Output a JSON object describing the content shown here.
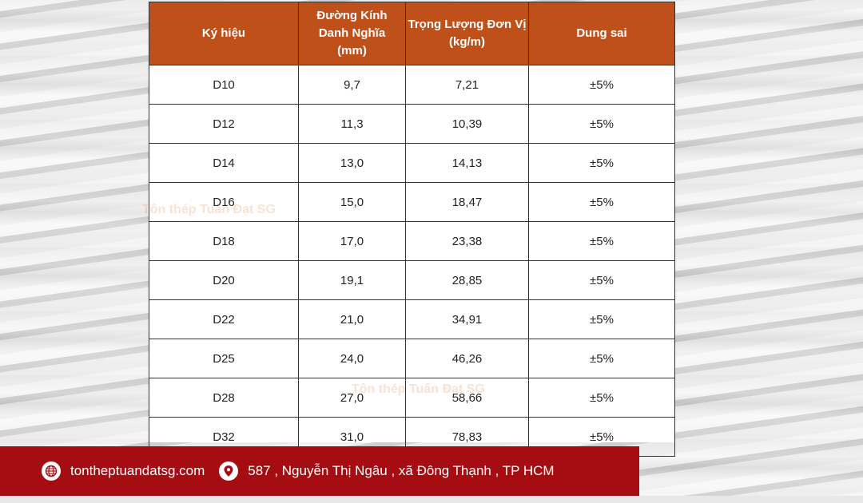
{
  "table": {
    "headers": [
      [
        "Ký hiệu"
      ],
      [
        "Đường Kính",
        "Danh Nghĩa",
        "(mm)"
      ],
      [
        "Trọng Lượng Đơn Vị",
        "(kg/m)"
      ],
      [
        "Dung sai"
      ]
    ],
    "rows": [
      [
        "D10",
        "9,7",
        "7,21",
        "±5%"
      ],
      [
        "D12",
        "11,3",
        "10,39",
        "±5%"
      ],
      [
        "D14",
        "13,0",
        "14,13",
        "±5%"
      ],
      [
        "D16",
        "15,0",
        "18,47",
        "±5%"
      ],
      [
        "D18",
        "17,0",
        "23,38",
        "±5%"
      ],
      [
        "D20",
        "19,1",
        "28,85",
        "±5%"
      ],
      [
        "D22",
        "21,0",
        "34,91",
        "±5%"
      ],
      [
        "D25",
        "24,0",
        "46,26",
        "±5%"
      ],
      [
        "D28",
        "27,0",
        "58,66",
        "±5%"
      ],
      [
        "D32",
        "31,0",
        "78,83",
        "±5%"
      ]
    ]
  },
  "watermark": "Tôn thép Tuấn Đạt SG",
  "footer": {
    "website": "tontheptuandatsg.com",
    "address": "587 , Nguyễn Thị Ngâu , xã Đông Thạnh , TP HCM",
    "website_icon": "globe-icon",
    "address_icon": "location-pin-icon"
  },
  "colors": {
    "header_bg": "#c0501a",
    "footer_bg": "#a50d12"
  }
}
